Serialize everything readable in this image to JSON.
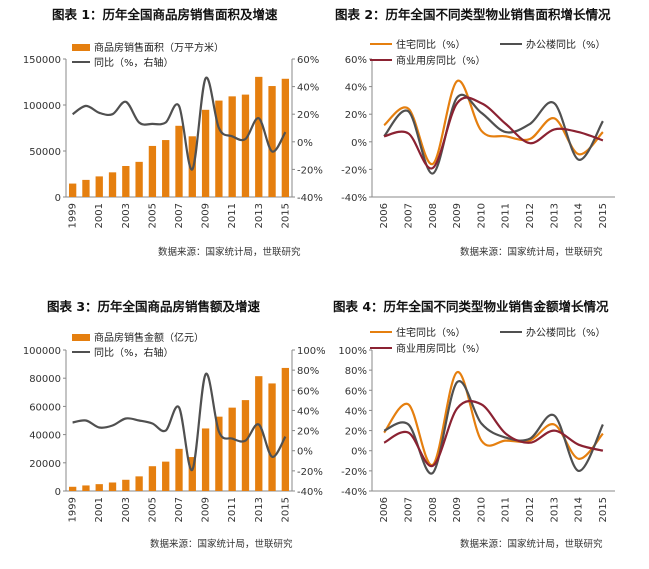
{
  "source_text": "数据来源：国家统计局，世联研究",
  "colors": {
    "orange": "#E57F0F",
    "gray": "#505050",
    "maroon": "#8B2232"
  },
  "chart_data": [
    {
      "type": "bar",
      "title": "图表 1：历年全国商品房销售面积及增速",
      "categories": [
        "1999",
        "2000",
        "2001",
        "2002",
        "2003",
        "2004",
        "2005",
        "2006",
        "2007",
        "2008",
        "2009",
        "2010",
        "2011",
        "2012",
        "2013",
        "2014",
        "2015"
      ],
      "x_tick_labels": [
        "1999",
        "2001",
        "2003",
        "2005",
        "2007",
        "2009",
        "2011",
        "2013",
        "2015"
      ],
      "y_left_ticks": [
        "0",
        "50000",
        "100000",
        "150000"
      ],
      "y_right_ticks": [
        "-40%",
        "-20%",
        "0%",
        "20%",
        "40%",
        "60%"
      ],
      "ylim_left": [
        0,
        150000
      ],
      "ylim_right": [
        -40,
        60
      ],
      "series": [
        {
          "name": "商品房销售面积（万平方米）",
          "type": "bar",
          "values": [
            14600,
            18600,
            22400,
            26800,
            33700,
            38200,
            55500,
            61900,
            77400,
            65970,
            94760,
            104800,
            109400,
            111300,
            130600,
            120600,
            128500
          ]
        },
        {
          "name": "同比（%，右轴）",
          "type": "line",
          "axis": "right",
          "values": [
            20,
            26,
            21,
            20,
            29,
            14,
            13,
            14,
            26,
            -20,
            46,
            10,
            4,
            2,
            17,
            -7,
            7
          ]
        }
      ]
    },
    {
      "type": "line",
      "title": "图表 2：历年全国不同类型物业销售面积增长情况",
      "categories": [
        "2006",
        "2007",
        "2008",
        "2009",
        "2010",
        "2011",
        "2012",
        "2013",
        "2014",
        "2015"
      ],
      "y_ticks": [
        "-40%",
        "-20%",
        "0%",
        "20%",
        "40%",
        "60%"
      ],
      "ylim": [
        -40,
        60
      ],
      "series": [
        {
          "name": "住宅同比（%）",
          "values": [
            12,
            24,
            -16,
            44,
            8,
            4,
            2,
            17,
            -9,
            7
          ]
        },
        {
          "name": "办公楼同比（%）",
          "values": [
            4,
            22,
            -23,
            32,
            21,
            7,
            13,
            28,
            -13,
            15
          ]
        },
        {
          "name": "商业用房同比（%）",
          "values": [
            4,
            6,
            -19,
            28,
            28,
            13,
            -1,
            9,
            7,
            1
          ]
        }
      ]
    },
    {
      "type": "bar",
      "title": "图表 3：历年全国商品房销售额及增速",
      "categories": [
        "1999",
        "2000",
        "2001",
        "2002",
        "2003",
        "2004",
        "2005",
        "2006",
        "2007",
        "2008",
        "2009",
        "2010",
        "2011",
        "2012",
        "2013",
        "2014",
        "2015"
      ],
      "x_tick_labels": [
        "1999",
        "2001",
        "2003",
        "2005",
        "2007",
        "2009",
        "2011",
        "2013",
        "2015"
      ],
      "y_left_ticks": [
        "0",
        "20000",
        "40000",
        "60000",
        "80000",
        "100000"
      ],
      "y_right_ticks": [
        "-40%",
        "-20%",
        "0%",
        "20%",
        "40%",
        "60%",
        "80%",
        "100%"
      ],
      "ylim_left": [
        0,
        100000
      ],
      "ylim_right": [
        -40,
        100
      ],
      "series": [
        {
          "name": "商品房销售金额（亿元）",
          "type": "bar",
          "values": [
            2990,
            3940,
            4860,
            6030,
            7960,
            10380,
            17580,
            20830,
            29890,
            24070,
            44360,
            52720,
            59120,
            64460,
            81430,
            76290,
            87280
          ]
        },
        {
          "name": "同比（%，右轴）",
          "type": "line",
          "axis": "right",
          "values": [
            28,
            30,
            23,
            25,
            32,
            30,
            27,
            20,
            43,
            -19,
            76,
            19,
            12,
            10,
            26,
            -6,
            14
          ]
        }
      ]
    },
    {
      "type": "line",
      "title": "图表 4：历年全国不同类型物业销售金额增长情况",
      "categories": [
        "2006",
        "2007",
        "2008",
        "2009",
        "2010",
        "2011",
        "2012",
        "2013",
        "2014",
        "2015"
      ],
      "y_ticks": [
        "-40%",
        "-20%",
        "0%",
        "20%",
        "40%",
        "60%",
        "80%",
        "100%"
      ],
      "ylim": [
        -40,
        100
      ],
      "series": [
        {
          "name": "住宅同比（%）",
          "values": [
            18,
            46,
            -14,
            78,
            10,
            10,
            10,
            26,
            -8,
            17
          ]
        },
        {
          "name": "办公楼同比（%）",
          "values": [
            20,
            26,
            -22,
            68,
            27,
            13,
            12,
            35,
            -20,
            26
          ]
        },
        {
          "name": "商业用房同比（%）",
          "values": [
            8,
            18,
            -15,
            42,
            46,
            17,
            8,
            20,
            6,
            0
          ]
        }
      ]
    }
  ]
}
